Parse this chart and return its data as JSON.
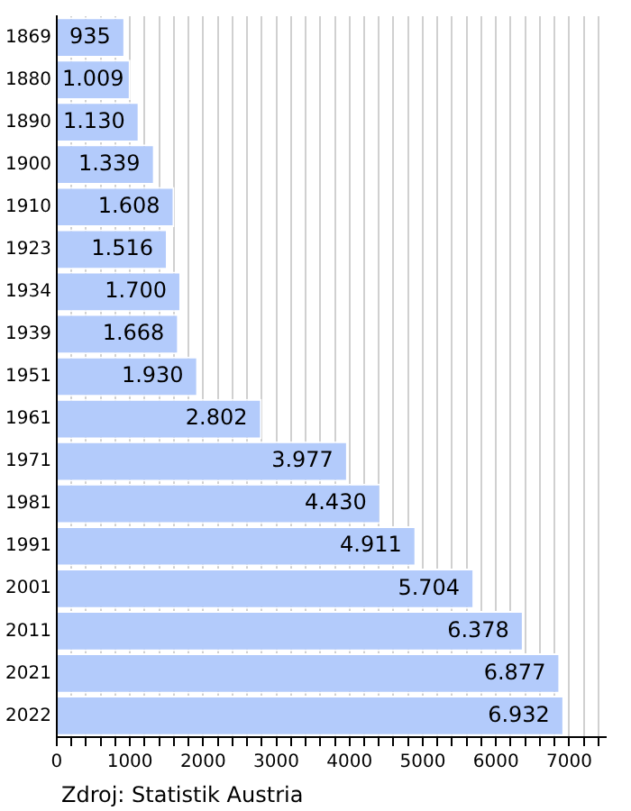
{
  "chart_data": {
    "type": "bar",
    "orientation": "horizontal",
    "categories": [
      "1869",
      "1880",
      "1890",
      "1900",
      "1910",
      "1923",
      "1934",
      "1939",
      "1951",
      "1961",
      "1971",
      "1981",
      "1991",
      "2001",
      "2011",
      "2021",
      "2022"
    ],
    "values": [
      935,
      1009,
      1130,
      1339,
      1608,
      1516,
      1700,
      1668,
      1930,
      2802,
      3977,
      4430,
      4911,
      5704,
      6378,
      6877,
      6932
    ],
    "value_labels": [
      "935",
      "1.009",
      "1.130",
      "1.339",
      "1.608",
      "1.516",
      "1.700",
      "1.668",
      "1.930",
      "2.802",
      "3.977",
      "4.430",
      "4.911",
      "5.704",
      "6.378",
      "6.877",
      "6.932"
    ],
    "color": "#b3cbfb",
    "xlim": [
      0,
      7500
    ],
    "xticks": [
      0,
      {
        "value": 200,
        "label": null
      },
      {
        "value": 400,
        "label": null
      },
      {
        "value": 600,
        "label": null
      },
      {
        "value": 800,
        "label": null
      },
      1000,
      {
        "value": 1200,
        "label": null
      },
      {
        "value": 1400,
        "label": null
      },
      {
        "value": 1600,
        "label": null
      },
      {
        "value": 1800,
        "label": null
      },
      2000,
      {
        "value": 2200,
        "label": null
      },
      {
        "value": 2400,
        "label": null
      },
      {
        "value": 2600,
        "label": null
      },
      {
        "value": 2800,
        "label": null
      },
      3000,
      {
        "value": 3200,
        "label": null
      },
      {
        "value": 3400,
        "label": null
      },
      {
        "value": 3600,
        "label": null
      },
      {
        "value": 3800,
        "label": null
      },
      4000,
      {
        "value": 4200,
        "label": null
      },
      {
        "value": 4400,
        "label": null
      },
      {
        "value": 4600,
        "label": null
      },
      {
        "value": 4800,
        "label": null
      },
      5000,
      {
        "value": 5200,
        "label": null
      },
      {
        "value": 5400,
        "label": null
      },
      {
        "value": 5600,
        "label": null
      },
      {
        "value": 5800,
        "label": null
      },
      6000,
      {
        "value": 6200,
        "label": null
      },
      {
        "value": 6400,
        "label": null
      },
      {
        "value": 6600,
        "label": null
      },
      {
        "value": 6800,
        "label": null
      },
      7000,
      {
        "value": 7200,
        "label": null
      },
      {
        "value": 7400,
        "label": null
      }
    ],
    "grid": "x",
    "legend": false,
    "annotations": [
      "Zdroj: Statistik Austria"
    ]
  }
}
